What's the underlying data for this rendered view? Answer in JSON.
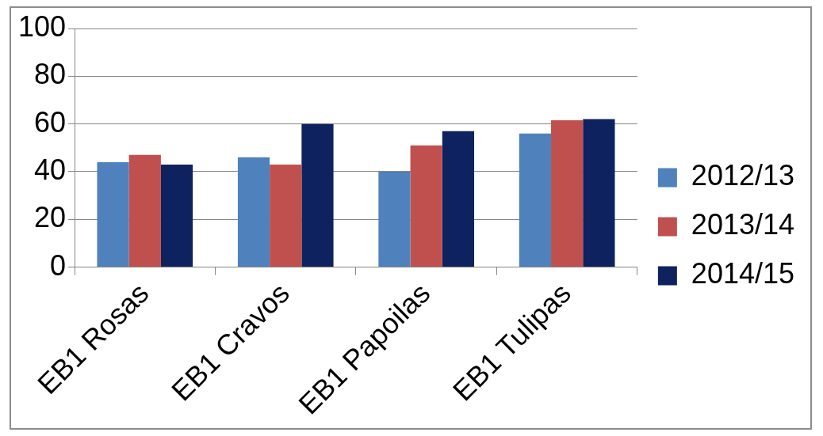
{
  "chart_data": {
    "type": "bar",
    "categories": [
      "EB1 Rosas",
      "EB1 Cravos",
      "EB1 Papoilas",
      "EB1 Tulipas"
    ],
    "series": [
      {
        "name": "2012/13",
        "color": "#4f81bd",
        "values": [
          44,
          46,
          40,
          56
        ]
      },
      {
        "name": "2013/14",
        "color": "#c0504d",
        "values": [
          47,
          43,
          51,
          61.5
        ]
      },
      {
        "name": "2014/15",
        "color": "#0f2260",
        "values": [
          43,
          60,
          57,
          62
        ]
      }
    ],
    "ylim": [
      0,
      100
    ],
    "yticks": [
      0,
      20,
      40,
      60,
      80,
      100
    ],
    "grid": "y",
    "legend": "right"
  }
}
